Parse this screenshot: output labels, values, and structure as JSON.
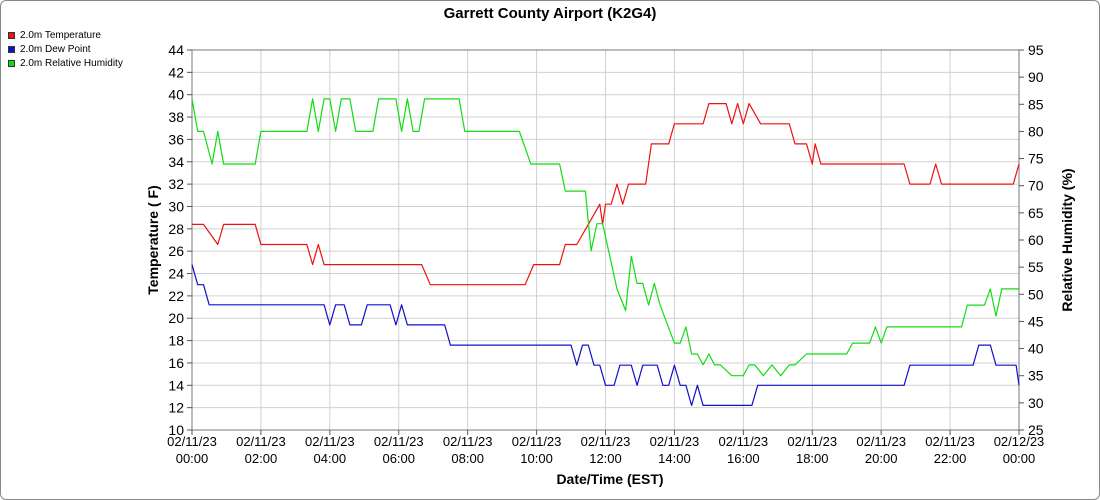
{
  "chart_data": {
    "type": "line",
    "title": "Garrett County Airport (K2G4)",
    "xlabel": "Date/Time (EST)",
    "ylabel": "Temperature ( F)",
    "y2label": "Relative Humidity (%)",
    "ylim": [
      10,
      44
    ],
    "y2lim": [
      25,
      95
    ],
    "yticks": [
      "10",
      "12",
      "14",
      "16",
      "18",
      "20",
      "22",
      "24",
      "26",
      "28",
      "30",
      "32",
      "34",
      "36",
      "38",
      "40",
      "42",
      "44"
    ],
    "y2ticks": [
      "25",
      "30",
      "35",
      "40",
      "45",
      "50",
      "55",
      "60",
      "65",
      "70",
      "75",
      "80",
      "85",
      "90",
      "95"
    ],
    "xticks": [
      {
        "date": "02/11/23",
        "time": "00:00"
      },
      {
        "date": "02/11/23",
        "time": "02:00"
      },
      {
        "date": "02/11/23",
        "time": "04:00"
      },
      {
        "date": "02/11/23",
        "time": "06:00"
      },
      {
        "date": "02/11/23",
        "time": "08:00"
      },
      {
        "date": "02/11/23",
        "time": "10:00"
      },
      {
        "date": "02/11/23",
        "time": "12:00"
      },
      {
        "date": "02/11/23",
        "time": "14:00"
      },
      {
        "date": "02/11/23",
        "time": "16:00"
      },
      {
        "date": "02/11/23",
        "time": "18:00"
      },
      {
        "date": "02/11/23",
        "time": "20:00"
      },
      {
        "date": "02/11/23",
        "time": "22:00"
      },
      {
        "date": "02/12/23",
        "time": "00:00"
      }
    ],
    "grid": true,
    "legend_position": "top-left",
    "series": [
      {
        "name": "2.0m Temperature",
        "color": "#ee1111",
        "axis": "left",
        "points": [
          [
            "00:00",
            28.4
          ],
          [
            "00:20",
            28.4
          ],
          [
            "00:45",
            26.6
          ],
          [
            "00:55",
            28.4
          ],
          [
            "01:50",
            28.4
          ],
          [
            "02:00",
            26.6
          ],
          [
            "03:20",
            26.6
          ],
          [
            "03:30",
            24.8
          ],
          [
            "03:40",
            26.6
          ],
          [
            "03:50",
            24.8
          ],
          [
            "06:40",
            24.8
          ],
          [
            "06:55",
            23.0
          ],
          [
            "09:40",
            23.0
          ],
          [
            "09:55",
            24.8
          ],
          [
            "10:10",
            24.8
          ],
          [
            "10:20",
            24.8
          ],
          [
            "10:40",
            24.8
          ],
          [
            "10:50",
            26.6
          ],
          [
            "11:00",
            26.6
          ],
          [
            "11:10",
            26.6
          ],
          [
            "11:30",
            28.4
          ],
          [
            "11:50",
            30.2
          ],
          [
            "11:55",
            28.4
          ],
          [
            "12:00",
            30.2
          ],
          [
            "12:10",
            30.2
          ],
          [
            "12:20",
            32.0
          ],
          [
            "12:30",
            30.2
          ],
          [
            "12:40",
            32.0
          ],
          [
            "13:10",
            32.0
          ],
          [
            "13:20",
            35.6
          ],
          [
            "13:50",
            35.6
          ],
          [
            "14:00",
            37.4
          ],
          [
            "14:50",
            37.4
          ],
          [
            "15:00",
            39.2
          ],
          [
            "15:30",
            39.2
          ],
          [
            "15:40",
            37.4
          ],
          [
            "15:50",
            39.2
          ],
          [
            "16:00",
            37.4
          ],
          [
            "16:10",
            39.2
          ],
          [
            "16:30",
            37.4
          ],
          [
            "17:20",
            37.4
          ],
          [
            "17:30",
            35.6
          ],
          [
            "17:50",
            35.6
          ],
          [
            "18:00",
            33.8
          ],
          [
            "18:05",
            35.6
          ],
          [
            "18:15",
            33.8
          ],
          [
            "20:00",
            33.8
          ],
          [
            "20:40",
            33.8
          ],
          [
            "20:50",
            32.0
          ],
          [
            "21:25",
            32.0
          ],
          [
            "21:35",
            33.8
          ],
          [
            "21:45",
            32.0
          ],
          [
            "23:50",
            32.0
          ],
          [
            "24:00",
            33.8
          ]
        ]
      },
      {
        "name": "2.0m Dew Point",
        "color": "#1111cc",
        "axis": "left",
        "points": [
          [
            "00:00",
            24.8
          ],
          [
            "00:10",
            23.0
          ],
          [
            "00:20",
            23.0
          ],
          [
            "00:30",
            21.2
          ],
          [
            "03:50",
            21.2
          ],
          [
            "04:00",
            19.4
          ],
          [
            "04:10",
            21.2
          ],
          [
            "04:25",
            21.2
          ],
          [
            "04:35",
            19.4
          ],
          [
            "04:55",
            19.4
          ],
          [
            "05:05",
            21.2
          ],
          [
            "05:45",
            21.2
          ],
          [
            "05:55",
            19.4
          ],
          [
            "06:05",
            21.2
          ],
          [
            "06:15",
            19.4
          ],
          [
            "07:20",
            19.4
          ],
          [
            "07:30",
            17.6
          ],
          [
            "10:50",
            17.6
          ],
          [
            "11:00",
            17.6
          ],
          [
            "11:10",
            15.8
          ],
          [
            "11:20",
            17.6
          ],
          [
            "11:30",
            17.6
          ],
          [
            "11:40",
            15.8
          ],
          [
            "11:50",
            15.8
          ],
          [
            "12:00",
            14.0
          ],
          [
            "12:15",
            14.0
          ],
          [
            "12:25",
            15.8
          ],
          [
            "12:45",
            15.8
          ],
          [
            "12:55",
            14.0
          ],
          [
            "13:05",
            15.8
          ],
          [
            "13:30",
            15.8
          ],
          [
            "13:40",
            14.0
          ],
          [
            "13:50",
            14.0
          ],
          [
            "14:00",
            15.8
          ],
          [
            "14:10",
            14.0
          ],
          [
            "14:20",
            14.0
          ],
          [
            "14:30",
            12.2
          ],
          [
            "14:40",
            14.0
          ],
          [
            "14:50",
            12.2
          ],
          [
            "16:15",
            12.2
          ],
          [
            "16:25",
            14.0
          ],
          [
            "18:00",
            14.0
          ],
          [
            "19:15",
            14.0
          ],
          [
            "20:00",
            14.0
          ],
          [
            "20:40",
            14.0
          ],
          [
            "20:50",
            15.8
          ],
          [
            "21:30",
            15.8
          ],
          [
            "22:40",
            15.8
          ],
          [
            "22:50",
            17.6
          ],
          [
            "23:10",
            17.6
          ],
          [
            "23:20",
            15.8
          ],
          [
            "23:55",
            15.8
          ],
          [
            "24:00",
            14.0
          ]
        ]
      },
      {
        "name": "2.0m Relative Humidity",
        "color": "#11dd11",
        "axis": "right",
        "points": [
          [
            "00:00",
            86
          ],
          [
            "00:10",
            80
          ],
          [
            "00:20",
            80
          ],
          [
            "00:35",
            74
          ],
          [
            "00:45",
            80
          ],
          [
            "00:55",
            74
          ],
          [
            "01:50",
            74
          ],
          [
            "02:00",
            80
          ],
          [
            "03:20",
            80
          ],
          [
            "03:30",
            86
          ],
          [
            "03:40",
            80
          ],
          [
            "03:50",
            86
          ],
          [
            "04:00",
            86
          ],
          [
            "04:10",
            80
          ],
          [
            "04:20",
            86
          ],
          [
            "04:35",
            86
          ],
          [
            "04:45",
            80
          ],
          [
            "05:15",
            80
          ],
          [
            "05:25",
            86
          ],
          [
            "05:55",
            86
          ],
          [
            "06:05",
            80
          ],
          [
            "06:15",
            86
          ],
          [
            "06:25",
            80
          ],
          [
            "06:35",
            80
          ],
          [
            "06:45",
            86
          ],
          [
            "07:45",
            86
          ],
          [
            "07:55",
            80
          ],
          [
            "09:30",
            80
          ],
          [
            "09:50",
            74
          ],
          [
            "10:40",
            74
          ],
          [
            "10:50",
            69
          ],
          [
            "11:25",
            69
          ],
          [
            "11:35",
            58
          ],
          [
            "11:45",
            63
          ],
          [
            "11:55",
            63
          ],
          [
            "12:20",
            51
          ],
          [
            "12:35",
            47
          ],
          [
            "12:45",
            57
          ],
          [
            "12:55",
            52
          ],
          [
            "13:05",
            52
          ],
          [
            "13:15",
            48
          ],
          [
            "13:25",
            52
          ],
          [
            "13:35",
            48
          ],
          [
            "14:00",
            41
          ],
          [
            "14:10",
            41
          ],
          [
            "14:20",
            44
          ],
          [
            "14:30",
            39
          ],
          [
            "14:40",
            39
          ],
          [
            "14:50",
            37
          ],
          [
            "15:00",
            39
          ],
          [
            "15:10",
            37
          ],
          [
            "15:20",
            37
          ],
          [
            "15:40",
            35
          ],
          [
            "16:00",
            35
          ],
          [
            "16:10",
            37
          ],
          [
            "16:20",
            37
          ],
          [
            "16:35",
            35
          ],
          [
            "16:50",
            37
          ],
          [
            "17:05",
            35
          ],
          [
            "17:20",
            37
          ],
          [
            "17:30",
            37
          ],
          [
            "17:50",
            39
          ],
          [
            "18:30",
            39
          ],
          [
            "19:00",
            39
          ],
          [
            "19:10",
            41
          ],
          [
            "19:40",
            41
          ],
          [
            "19:50",
            44
          ],
          [
            "20:00",
            41
          ],
          [
            "20:10",
            44
          ],
          [
            "22:20",
            44
          ],
          [
            "22:30",
            48
          ],
          [
            "23:00",
            48
          ],
          [
            "23:10",
            51
          ],
          [
            "23:20",
            46
          ],
          [
            "23:30",
            51
          ],
          [
            "24:00",
            51
          ]
        ]
      }
    ]
  }
}
